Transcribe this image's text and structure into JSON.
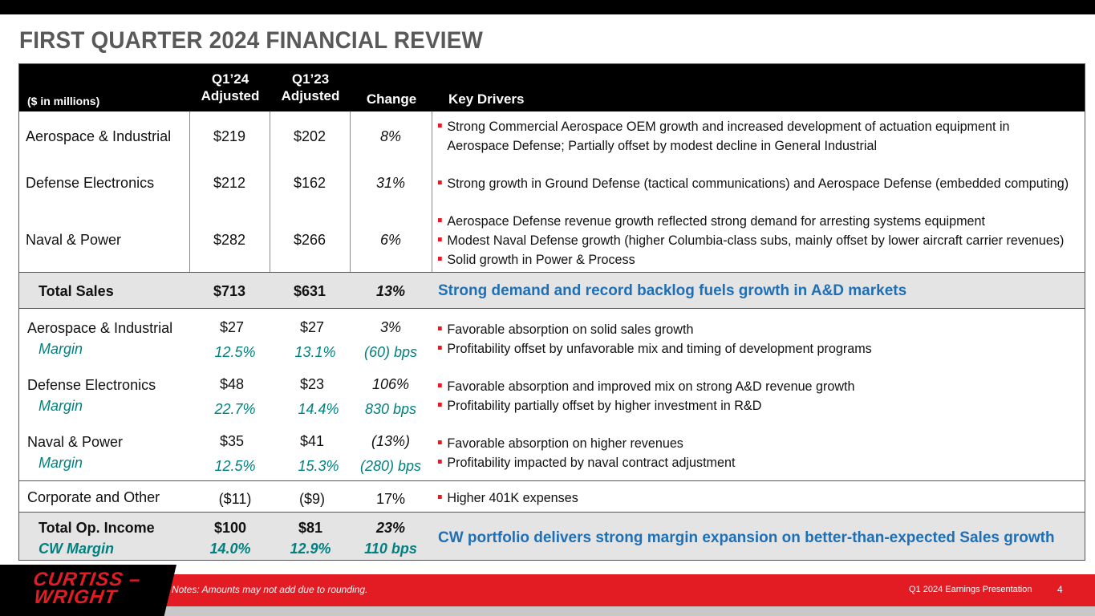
{
  "title": "FIRST QUARTER 2024 FINANCIAL REVIEW",
  "header": {
    "units": "($ in millions)",
    "q124_line1": "Q1’24",
    "q124_line2": "Adjusted",
    "q123_line1": "Q1’23",
    "q123_line2": "Adjusted",
    "change": "Change",
    "drivers": "Key Drivers"
  },
  "sales": {
    "rows": [
      {
        "segment": "Aerospace & Industrial",
        "q124": "$219",
        "q123": "$202",
        "change": "8%",
        "drivers": [
          "Strong Commercial Aerospace OEM growth and increased development of actuation equipment in",
          "Aerospace Defense; Partially offset by modest decline in General Industrial"
        ]
      },
      {
        "segment": "Defense Electronics",
        "q124": "$212",
        "q123": "$162",
        "change": "31%",
        "drivers": [
          "Strong growth in Ground Defense (tactical communications) and Aerospace Defense (embedded computing)"
        ]
      },
      {
        "segment": "Naval & Power",
        "q124": "$282",
        "q123": "$266",
        "change": "6%",
        "drivers": [
          "Aerospace Defense revenue growth reflected strong demand for arresting systems equipment",
          "Modest Naval Defense growth (higher Columbia-class subs, mainly offset by lower aircraft carrier revenues)",
          "Solid growth in Power & Process"
        ]
      }
    ],
    "total": {
      "label": "Total Sales",
      "q124": "$713",
      "q123": "$631",
      "change": "13%",
      "driver": "Strong demand and record backlog fuels growth in A&D markets"
    }
  },
  "income": {
    "rows": [
      {
        "segment": "Aerospace & Industrial",
        "margin_label": "Margin",
        "q124": "$27",
        "q124_margin": "12.5%",
        "q123": "$27",
        "q123_margin": "13.1%",
        "change": "3%",
        "change_margin": "(60) bps",
        "drivers": [
          "Favorable absorption on solid sales growth",
          "Profitability offset by unfavorable mix and timing of development programs"
        ]
      },
      {
        "segment": "Defense Electronics",
        "margin_label": "Margin",
        "q124": "$48",
        "q124_margin": "22.7%",
        "q123": "$23",
        "q123_margin": "14.4%",
        "change": "106%",
        "change_margin": "830 bps",
        "drivers": [
          "Favorable absorption and improved mix on strong A&D revenue growth",
          "Profitability partially offset by higher investment in R&D"
        ]
      },
      {
        "segment": "Naval & Power",
        "margin_label": "Margin",
        "q124": "$35",
        "q124_margin": "12.5%",
        "q123": "$41",
        "q123_margin": "15.3%",
        "change": "(13%)",
        "change_margin": "(280) bps",
        "drivers": [
          "Favorable absorption on higher revenues",
          "Profitability impacted by naval contract adjustment"
        ]
      }
    ],
    "corporate": {
      "label": "Corporate and Other",
      "q124": "($11)",
      "q123": "($9)",
      "change": "17%",
      "driver": "Higher 401K expenses"
    },
    "total": {
      "label": "Total Op. Income",
      "margin_label": "CW Margin",
      "q124": "$100",
      "q124_margin": "14.0%",
      "q123": "$81",
      "q123_margin": "12.9%",
      "change": "23%",
      "change_margin": "110 bps",
      "driver": "CW portfolio delivers strong margin expansion on better-than-expected Sales growth"
    }
  },
  "footer": {
    "logo_line1": "CURTISS –",
    "logo_line2": "WRIGHT",
    "note": "Notes: Amounts may not add due to rounding.",
    "presentation": "Q1 2024 Earnings Presentation",
    "page": "4"
  },
  "colors": {
    "accent_red": "#e31b23",
    "margin_teal": "#00807f",
    "highlight_blue": "#1f6fb5"
  }
}
